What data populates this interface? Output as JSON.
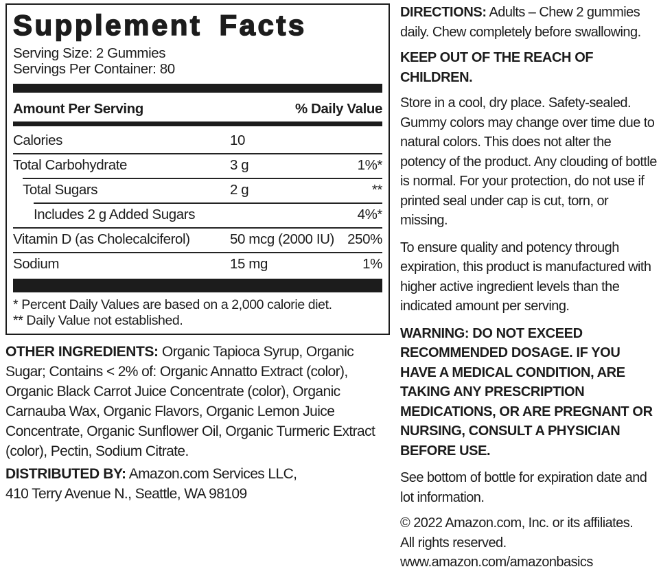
{
  "panel": {
    "title": "Supplement Facts",
    "serving_size": "Serving Size: 2 Gummies",
    "servings_per_container": "Servings Per Container: 80",
    "header": {
      "amount": "Amount Per Serving",
      "daily_value": "% Daily Value"
    },
    "rows": [
      {
        "label": "Calories",
        "amount": "10",
        "dv": ""
      },
      {
        "label": "Total Carbohydrate",
        "amount": "3 g",
        "dv": "1%*"
      },
      {
        "label": "Total Sugars",
        "amount": "2 g",
        "dv": "**"
      },
      {
        "label": "Includes 2 g Added Sugars",
        "amount": "",
        "dv": "4%*"
      },
      {
        "label": "Vitamin D (as Cholecalciferol)",
        "amount": "50 mcg (2000 IU)",
        "dv": "250%"
      },
      {
        "label": "Sodium",
        "amount": "15 mg",
        "dv": "1%"
      }
    ],
    "footnotes": [
      "* Percent Daily Values are based on a 2,000 calorie diet.",
      "** Daily Value not established."
    ]
  },
  "left": {
    "other_ingredients_label": "OTHER INGREDIENTS:",
    "other_ingredients_text": "Organic Tapioca Syrup, Organic Sugar; Contains < 2% of: Organic Annatto Extract (color), Organic Black Carrot Juice Concentrate (color), Organic Carnauba Wax, Organic Flavors, Organic Lemon Juice Concentrate, Organic Sunflower Oil, Organic Turmeric Extract (color), Pectin, Sodium Citrate.",
    "distributed_by_label": "DISTRIBUTED BY:",
    "distributed_by_text": "Amazon.com Services LLC,",
    "address": "410 Terry Avenue N., Seattle, WA 98109"
  },
  "right": {
    "directions_label": "DIRECTIONS:",
    "directions_text": "Adults – Chew 2 gummies daily. Chew completely before swallowing.",
    "keep_out": "KEEP OUT OF THE REACH OF CHILDREN.",
    "storage": "Store in a cool, dry place. Safety-sealed. Gummy colors may change over time due to natural colors. This does not alter the potency of the product. Any clouding of bottle is normal. For your protection, do not use if printed seal under cap is cut, torn, or missing.",
    "quality": "To ensure quality and potency through expiration, this product is manufactured with higher active ingredient levels than the indicated amount per serving.",
    "warning": "WARNING:  DO NOT EXCEED RECOMMENDED DOSAGE. IF YOU HAVE A MEDICAL CONDITION, ARE TAKING ANY PRESCRIPTION MEDICATIONS, OR ARE PREGNANT OR NURSING, CONSULT A PHYSICIAN BEFORE USE.",
    "expiration": "See bottom of bottle for expiration date and lot information.",
    "copyright_line1": "© 2022 Amazon.com, Inc. or its affiliates.",
    "copyright_line2": "All rights reserved.",
    "website": "www.amazon.com/amazonbasics"
  },
  "colors": {
    "ink": "#1c1c1c",
    "background": "#ffffff"
  }
}
